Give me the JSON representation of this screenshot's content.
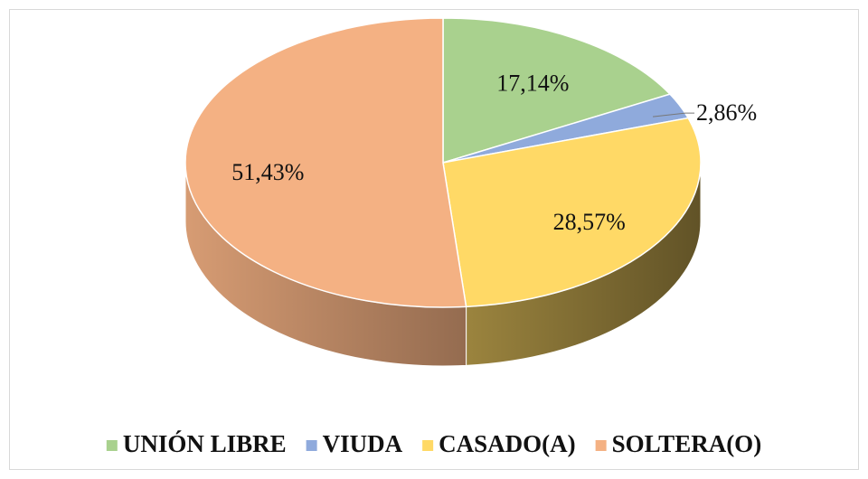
{
  "chart_data": {
    "type": "pie3d",
    "categories": [
      "UNIÓN LIBRE",
      "VIUDA",
      "CASADO(A)",
      "SOLTERA(O)"
    ],
    "values": [
      17.14,
      2.86,
      28.57,
      51.43
    ],
    "value_labels": [
      "17,14%",
      "2,86%",
      "28,57%",
      "51,43%"
    ],
    "colors": [
      "#a9d18e",
      "#8faadc",
      "#ffd966",
      "#f4b183"
    ],
    "legend": "bottom"
  }
}
